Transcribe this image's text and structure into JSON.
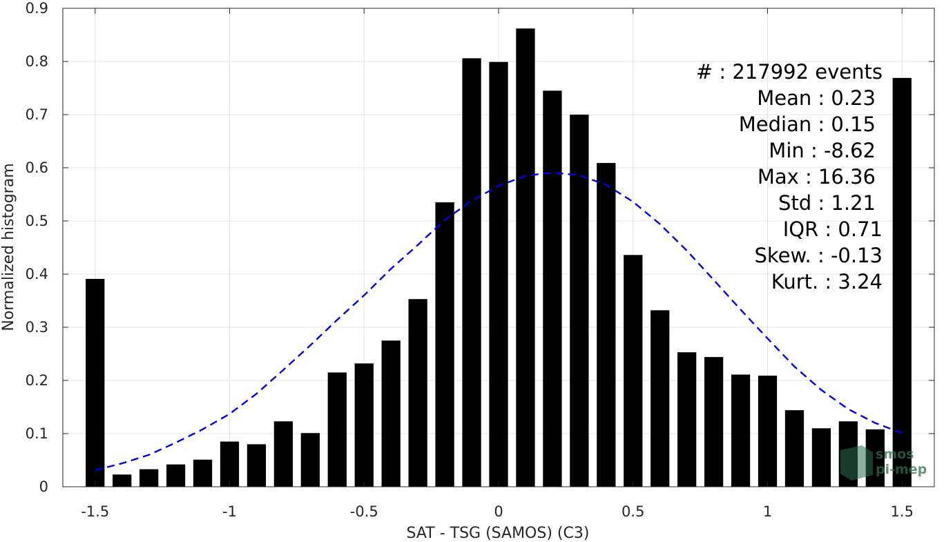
{
  "chart_data": {
    "type": "bar",
    "xlabel": "SAT - TSG (SAMOS) (C3)",
    "ylabel": "Normalized histogram",
    "xlim": [
      -1.62,
      1.62
    ],
    "ylim": [
      0,
      0.9
    ],
    "grid": true,
    "x_ticks": [
      -1.5,
      -1,
      -0.5,
      0,
      0.5,
      1,
      1.5
    ],
    "x_tick_labels": [
      "-1.5",
      "-1",
      "-0.5",
      "0",
      "0.5",
      "1",
      "1.5"
    ],
    "y_ticks": [
      0,
      0.1,
      0.2,
      0.3,
      0.4,
      0.5,
      0.6,
      0.7,
      0.8,
      0.9
    ],
    "y_tick_labels": [
      "0",
      "0.1",
      "0.2",
      "0.3",
      "0.4",
      "0.5",
      "0.6",
      "0.7",
      "0.8",
      "0.9"
    ],
    "bar_width": 0.07,
    "bar_color": "#000000",
    "bars": {
      "x": [
        -1.5,
        -1.4,
        -1.3,
        -1.2,
        -1.1,
        -1.0,
        -0.9,
        -0.8,
        -0.7,
        -0.6,
        -0.5,
        -0.4,
        -0.3,
        -0.2,
        -0.1,
        0.0,
        0.1,
        0.2,
        0.3,
        0.4,
        0.5,
        0.6,
        0.7,
        0.8,
        0.9,
        1.0,
        1.1,
        1.2,
        1.3,
        1.4,
        1.5
      ],
      "values": [
        0.391,
        0.023,
        0.033,
        0.042,
        0.051,
        0.085,
        0.08,
        0.123,
        0.101,
        0.215,
        0.232,
        0.275,
        0.353,
        0.535,
        0.806,
        0.799,
        0.862,
        0.745,
        0.7,
        0.609,
        0.436,
        0.332,
        0.253,
        0.244,
        0.211,
        0.209,
        0.144,
        0.11,
        0.123,
        0.108,
        0.769
      ]
    },
    "fit_curve": {
      "style": "dashed",
      "color": "#0000e0",
      "x": [
        -1.5,
        -1.4,
        -1.3,
        -1.2,
        -1.1,
        -1.0,
        -0.9,
        -0.8,
        -0.7,
        -0.6,
        -0.5,
        -0.4,
        -0.3,
        -0.2,
        -0.1,
        0.0,
        0.1,
        0.2,
        0.3,
        0.4,
        0.5,
        0.6,
        0.7,
        0.8,
        0.9,
        1.0,
        1.1,
        1.2,
        1.3,
        1.4,
        1.5
      ],
      "y": [
        0.031,
        0.044,
        0.06,
        0.083,
        0.108,
        0.137,
        0.175,
        0.22,
        0.266,
        0.314,
        0.36,
        0.41,
        0.455,
        0.502,
        0.538,
        0.566,
        0.585,
        0.591,
        0.586,
        0.568,
        0.536,
        0.494,
        0.444,
        0.389,
        0.333,
        0.279,
        0.226,
        0.182,
        0.146,
        0.12,
        0.101
      ]
    },
    "stats": [
      "#  : 217992 events",
      "Mean : 0.23",
      "Median : 0.15",
      "Min : -8.62",
      "Max : 16.36",
      "Std : 1.21",
      "IQR : 0.71",
      "Skew. : -0.13",
      "Kurt. : 3.24"
    ]
  },
  "logo": {
    "line1": "smos",
    "line2": "pi-mep",
    "color": "#2f6f4e"
  }
}
